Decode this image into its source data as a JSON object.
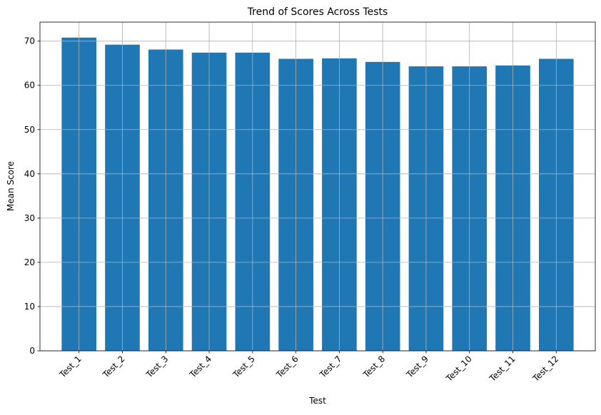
{
  "chart_data": {
    "type": "bar",
    "title": "Trend of Scores Across Tests",
    "xlabel": "Test",
    "ylabel": "Mean Score",
    "categories": [
      "Test_1",
      "Test_2",
      "Test_3",
      "Test_4",
      "Test_5",
      "Test_6",
      "Test_7",
      "Test_8",
      "Test_9",
      "Test_10",
      "Test_11",
      "Test_12"
    ],
    "values": [
      70.8,
      69.2,
      68.1,
      67.4,
      67.4,
      66.0,
      66.1,
      65.3,
      64.3,
      64.3,
      64.5,
      66.0
    ],
    "ylim": [
      0,
      74.3
    ],
    "yticks": [
      0,
      10,
      20,
      30,
      40,
      50,
      60,
      70
    ],
    "grid": true,
    "bar_color": "#1f77b4",
    "grid_color": "#b0b0b0"
  }
}
